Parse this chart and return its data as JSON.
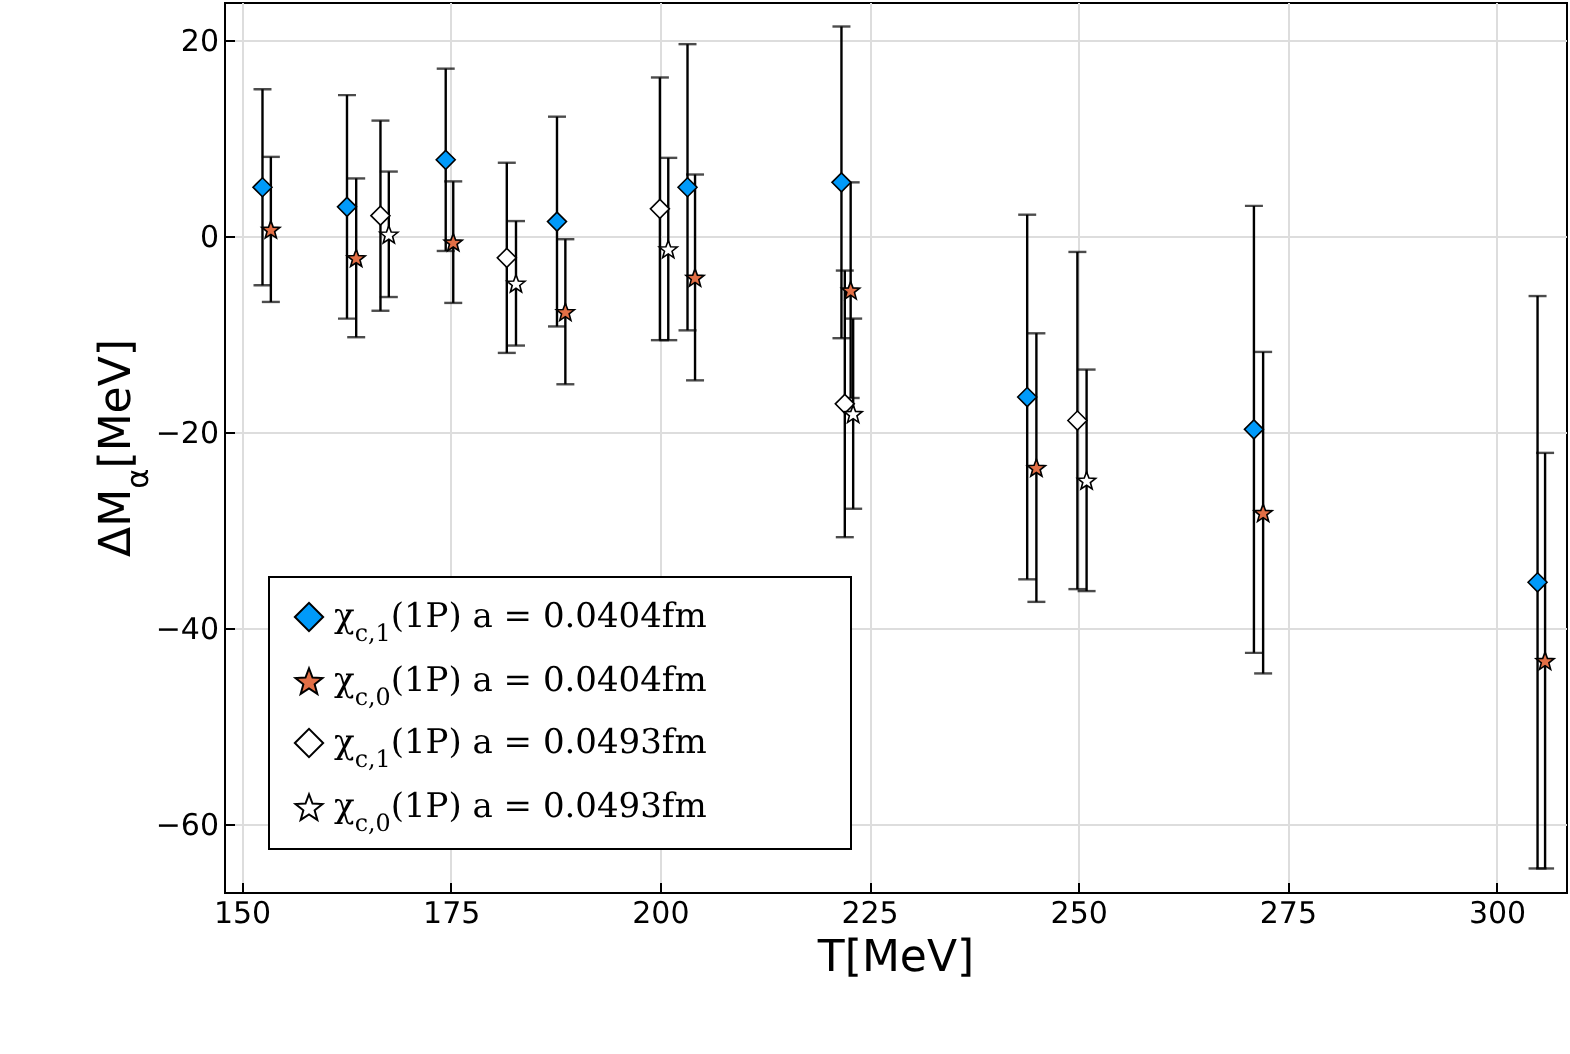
{
  "chart_data": {
    "type": "scatter",
    "xlabel": "T[MeV]",
    "ylabel": "ΔM$_{α}$[MeV]",
    "xlim": [
      147.9,
      308.3
    ],
    "ylim": [
      -66.9,
      23.9
    ],
    "xticks": [
      150,
      175,
      200,
      225,
      250,
      275,
      300
    ],
    "yticks": [
      -60,
      -40,
      -20,
      0,
      20
    ],
    "grid": true,
    "legend": "bottom left",
    "series": [
      {
        "name": "χ$_{c,1}$(1P) a = 0.0404fm",
        "color": "#009afa",
        "marker": "diamond",
        "x": [
          152.5,
          162.6,
          174.4,
          187.7,
          203.3,
          221.7,
          243.9,
          271.0,
          304.9
        ],
        "values": [
          5.0,
          3.0,
          7.8,
          1.5,
          5.0,
          5.5,
          -16.4,
          -19.7,
          -35.3
        ],
        "errors": [
          10.0,
          11.4,
          9.3,
          10.7,
          14.6,
          15.9,
          18.6,
          22.8,
          29.2
        ]
      },
      {
        "name": "χ$_{c,0}$(1P) a = 0.0404fm",
        "color": "#e26f46",
        "marker": "star",
        "x": [
          153.5,
          163.7,
          175.3,
          188.7,
          204.2,
          222.8,
          245.0,
          272.1,
          305.8
        ],
        "values": [
          0.7,
          -2.2,
          -0.6,
          -7.7,
          -4.2,
          -5.5,
          -23.6,
          -28.2,
          -43.3
        ],
        "errors": [
          7.4,
          8.1,
          6.2,
          7.4,
          10.5,
          11.0,
          13.7,
          16.4,
          21.2
        ]
      },
      {
        "name": "χ$_{c,1}$(1P) a = 0.0493fm",
        "color": "#ffffff",
        "marker": "diamond",
        "x": [
          166.6,
          181.7,
          200.0,
          222.1,
          249.9
        ],
        "values": [
          2.1,
          -2.2,
          2.8,
          -17.1,
          -18.8
        ],
        "errors": [
          9.7,
          9.7,
          13.4,
          13.6,
          17.2
        ]
      },
      {
        "name": "χ$_{c,0}$(1P) a = 0.0493fm",
        "color": "#ffffff",
        "marker": "star",
        "x": [
          167.6,
          182.8,
          201.0,
          223.1,
          251.0
        ],
        "values": [
          0.2,
          -4.8,
          -1.3,
          -18.1,
          -24.9
        ],
        "errors": [
          6.4,
          6.35,
          9.3,
          9.7,
          11.3
        ]
      }
    ]
  }
}
